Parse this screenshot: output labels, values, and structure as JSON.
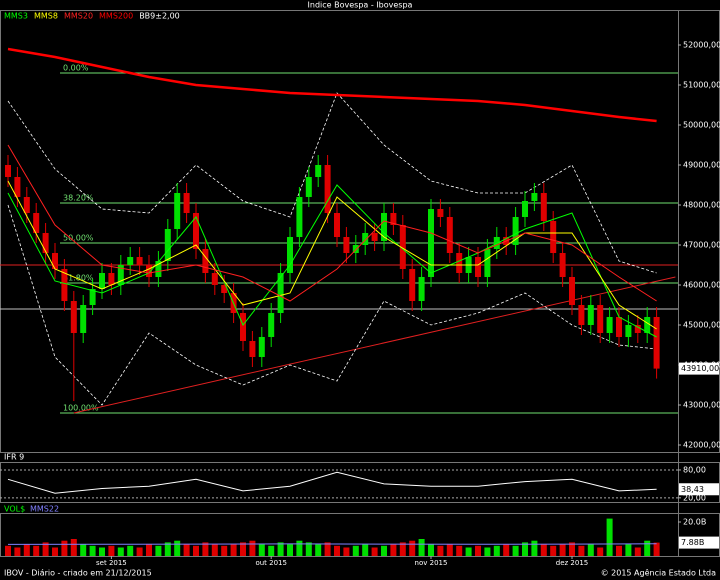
{
  "chart_data": {
    "type": "candlestick",
    "title": "Indice Bovespa - Ibovespa",
    "categories": [
      null,
      null,
      null,
      null,
      null,
      null,
      null,
      null,
      null,
      null,
      null,
      "set 2015",
      null,
      null,
      null,
      null,
      null,
      null,
      null,
      null,
      null,
      null,
      null,
      null,
      null,
      null,
      null,
      null,
      "out 2015",
      null,
      null,
      null,
      null,
      null,
      null,
      null,
      null,
      null,
      null,
      null,
      null,
      null,
      null,
      null,
      null,
      "nov 2015",
      null,
      null,
      null,
      null,
      null,
      null,
      null,
      null,
      null,
      null,
      null,
      null,
      null,
      null,
      "dez 2015",
      null,
      null,
      null,
      null,
      null,
      null,
      null,
      null,
      null
    ],
    "open": [
      49000,
      48700,
      48200,
      47800,
      47300,
      46800,
      46400,
      45600,
      44800,
      45500,
      45900,
      46300,
      46000,
      46500,
      46700,
      46500,
      46200,
      46600,
      47400,
      48300,
      47800,
      46900,
      46300,
      46000,
      45800,
      45300,
      44600,
      44200,
      44700,
      45300,
      46300,
      47200,
      48200,
      48700,
      49000,
      47800,
      47200,
      46800,
      47000,
      47300,
      47100,
      47800,
      47500,
      46400,
      45600,
      46200,
      47900,
      47700,
      46800,
      46300,
      46700,
      46200,
      46900,
      47200,
      47000,
      47700,
      48100,
      48300,
      47600,
      46800,
      46200,
      45500,
      45000,
      45500,
      44800,
      45200,
      44700,
      45000,
      44800,
      45200
    ],
    "high": [
      49250,
      48950,
      48450,
      48050,
      47550,
      47050,
      46650,
      45850,
      45750,
      46150,
      46550,
      46550,
      46750,
      46950,
      46950,
      46750,
      46850,
      47650,
      48550,
      48550,
      48050,
      47150,
      46550,
      46250,
      46050,
      45550,
      44850,
      44950,
      45550,
      46550,
      47450,
      48450,
      48950,
      49250,
      49250,
      48050,
      47450,
      47250,
      47550,
      47550,
      48050,
      48050,
      47750,
      46650,
      46450,
      48150,
      48150,
      47950,
      47050,
      46950,
      46950,
      47150,
      47450,
      47450,
      47950,
      48350,
      48550,
      48550,
      47850,
      47050,
      46450,
      45750,
      45750,
      45750,
      45450,
      45450,
      45250,
      45250,
      45450,
      45450
    ],
    "low": [
      48450,
      47950,
      47550,
      47050,
      46550,
      46150,
      45350,
      43100,
      44550,
      45250,
      45650,
      45750,
      45750,
      46250,
      46250,
      45950,
      45950,
      46350,
      47150,
      47550,
      46650,
      46050,
      45750,
      45550,
      45050,
      44350,
      43950,
      43950,
      44450,
      45050,
      46050,
      46950,
      47950,
      48450,
      47550,
      46950,
      46550,
      46550,
      46750,
      46850,
      46850,
      47250,
      46150,
      45350,
      45350,
      45950,
      47450,
      46550,
      46050,
      46050,
      45950,
      45950,
      46650,
      46750,
      46750,
      47450,
      47850,
      47350,
      46550,
      45950,
      45250,
      44750,
      44750,
      44550,
      44550,
      44450,
      44450,
      44550,
      44550,
      43660
    ],
    "close": [
      48700,
      48200,
      47800,
      47300,
      46800,
      46400,
      45600,
      44800,
      45500,
      45900,
      46300,
      46000,
      46500,
      46700,
      46500,
      46200,
      46600,
      47400,
      48300,
      47800,
      46900,
      46300,
      46000,
      45800,
      45300,
      44600,
      44200,
      44700,
      45300,
      46300,
      47200,
      48200,
      48700,
      49000,
      47800,
      47200,
      46800,
      47000,
      47300,
      47100,
      47800,
      47500,
      46400,
      45600,
      46200,
      47900,
      47700,
      46800,
      46300,
      46700,
      46200,
      46900,
      47200,
      47000,
      47700,
      48100,
      48300,
      47600,
      46800,
      46200,
      45500,
      45000,
      45500,
      44800,
      45200,
      44700,
      45000,
      44800,
      45200,
      43910
    ],
    "last_label": "43910,00",
    "up_color": "#00e000",
    "down_color": "#e00000",
    "ylim": [
      41825,
      52875
    ],
    "yticks": [
      {
        "value": 42000,
        "label": "42000,00"
      },
      {
        "value": 43000,
        "label": "43000,00"
      },
      {
        "value": 44000,
        "label": "44000,00"
      },
      {
        "value": 45000,
        "label": "45000,00"
      },
      {
        "value": 46000,
        "label": "46000,00"
      },
      {
        "value": 47000,
        "label": "47000,00"
      },
      {
        "value": 48000,
        "label": "48000,00"
      },
      {
        "value": 49000,
        "label": "49000,00"
      },
      {
        "value": 50000,
        "label": "50000,00"
      },
      {
        "value": 51000,
        "label": "51000,00"
      },
      {
        "value": 52000,
        "label": "52000,00"
      }
    ],
    "overlay": {
      "x": [
        0,
        5,
        10,
        15,
        20,
        25,
        30,
        35,
        40,
        45,
        50,
        55,
        60,
        65,
        69
      ],
      "series": [
        {
          "name": "MMS3",
          "color": "#00ff00",
          "values": [
            48300,
            46100,
            45800,
            46300,
            47700,
            45000,
            46500,
            48500,
            47300,
            46300,
            46800,
            47400,
            47800,
            45200,
            44700
          ]
        },
        {
          "name": "MMS8",
          "color": "#ffff00",
          "values": [
            48600,
            46400,
            45900,
            46400,
            47000,
            45500,
            45800,
            48200,
            47200,
            46500,
            46500,
            47300,
            47300,
            45500,
            44900
          ]
        },
        {
          "name": "MMS20",
          "color": "#ff2020",
          "values": [
            49500,
            47500,
            46500,
            46300,
            46500,
            46200,
            45600,
            46400,
            47600,
            47300,
            46800,
            47300,
            47000,
            46200,
            45600
          ]
        },
        {
          "name": "MMS200",
          "color": "#ff0000",
          "values": [
            51900,
            51700,
            51450,
            51200,
            51000,
            50900,
            50800,
            50750,
            50700,
            50650,
            50600,
            50500,
            50350,
            50200,
            50100
          ]
        }
      ],
      "bollinger": {
        "name": "BB9±2,00",
        "color": "#ffffff",
        "upper": [
          50600,
          48900,
          47900,
          47800,
          49000,
          48100,
          47700,
          50800,
          49500,
          48600,
          48300,
          48300,
          49000,
          46600,
          46300
        ],
        "lower": [
          48000,
          44200,
          43000,
          44800,
          44000,
          43500,
          44000,
          43600,
          45600,
          45000,
          45300,
          45800,
          45000,
          44500,
          44400
        ]
      }
    },
    "fib_levels": {
      "color": "#70e070",
      "values": [
        51300,
        48050,
        47050,
        46050,
        42800
      ],
      "value_labels": [
        "0.00%",
        "38.20%",
        "50.00%",
        "61.80%",
        "100.00%"
      ]
    },
    "resistance": {
      "color": "#e02020",
      "value": 46500
    },
    "support": {
      "color": "#c0c0c0",
      "value": 45400
    },
    "trendline": {
      "color": "#e02020",
      "x": [
        7,
        71
      ],
      "values": [
        42800,
        46200
      ]
    },
    "rsi": {
      "title": "IFR 9",
      "color": "#ffffff",
      "ylim": [
        11,
        95
      ],
      "yticks": [
        {
          "value": 20,
          "label": "20,00"
        },
        {
          "value": 80,
          "label": "80,00"
        }
      ],
      "x": [
        0,
        5,
        10,
        15,
        20,
        25,
        30,
        35,
        40,
        45,
        50,
        55,
        60,
        65,
        69
      ],
      "values": [
        60,
        30,
        40,
        45,
        60,
        35,
        45,
        75,
        50,
        45,
        45,
        55,
        60,
        35,
        38.43
      ],
      "last_label": "38,43"
    },
    "volume": {
      "title": "VOL$",
      "ylim": [
        0,
        24.7
      ],
      "yticks": [
        {
          "value": 20,
          "label": "20.0B"
        }
      ],
      "values": [
        6,
        5,
        7,
        6,
        8,
        5,
        9,
        10,
        7,
        6,
        5,
        6,
        5,
        6,
        5,
        7,
        6,
        8,
        9,
        7,
        6,
        8,
        7,
        6,
        7,
        8,
        9,
        7,
        6,
        8,
        7,
        9,
        8,
        7,
        8,
        6,
        5,
        6,
        7,
        5,
        6,
        7,
        8,
        9,
        10,
        7,
        6,
        7,
        6,
        5,
        6,
        5,
        6,
        7,
        6,
        8,
        9,
        7,
        6,
        7,
        8,
        6,
        7,
        5,
        22,
        6,
        7,
        5,
        9,
        7.88
      ],
      "last_label": "7.88B",
      "average": {
        "name": "MMS22",
        "color": "#8080ff",
        "x": [
          0,
          10,
          20,
          30,
          40,
          50,
          60,
          69
        ],
        "values": [
          6.8,
          6.9,
          7,
          7.1,
          7,
          6.9,
          7,
          7.2
        ]
      }
    },
    "footer_left": "IBOV - Diário - criado em 21/12/2015",
    "footer_right": "© 2015 Agência Estado Ltda"
  }
}
